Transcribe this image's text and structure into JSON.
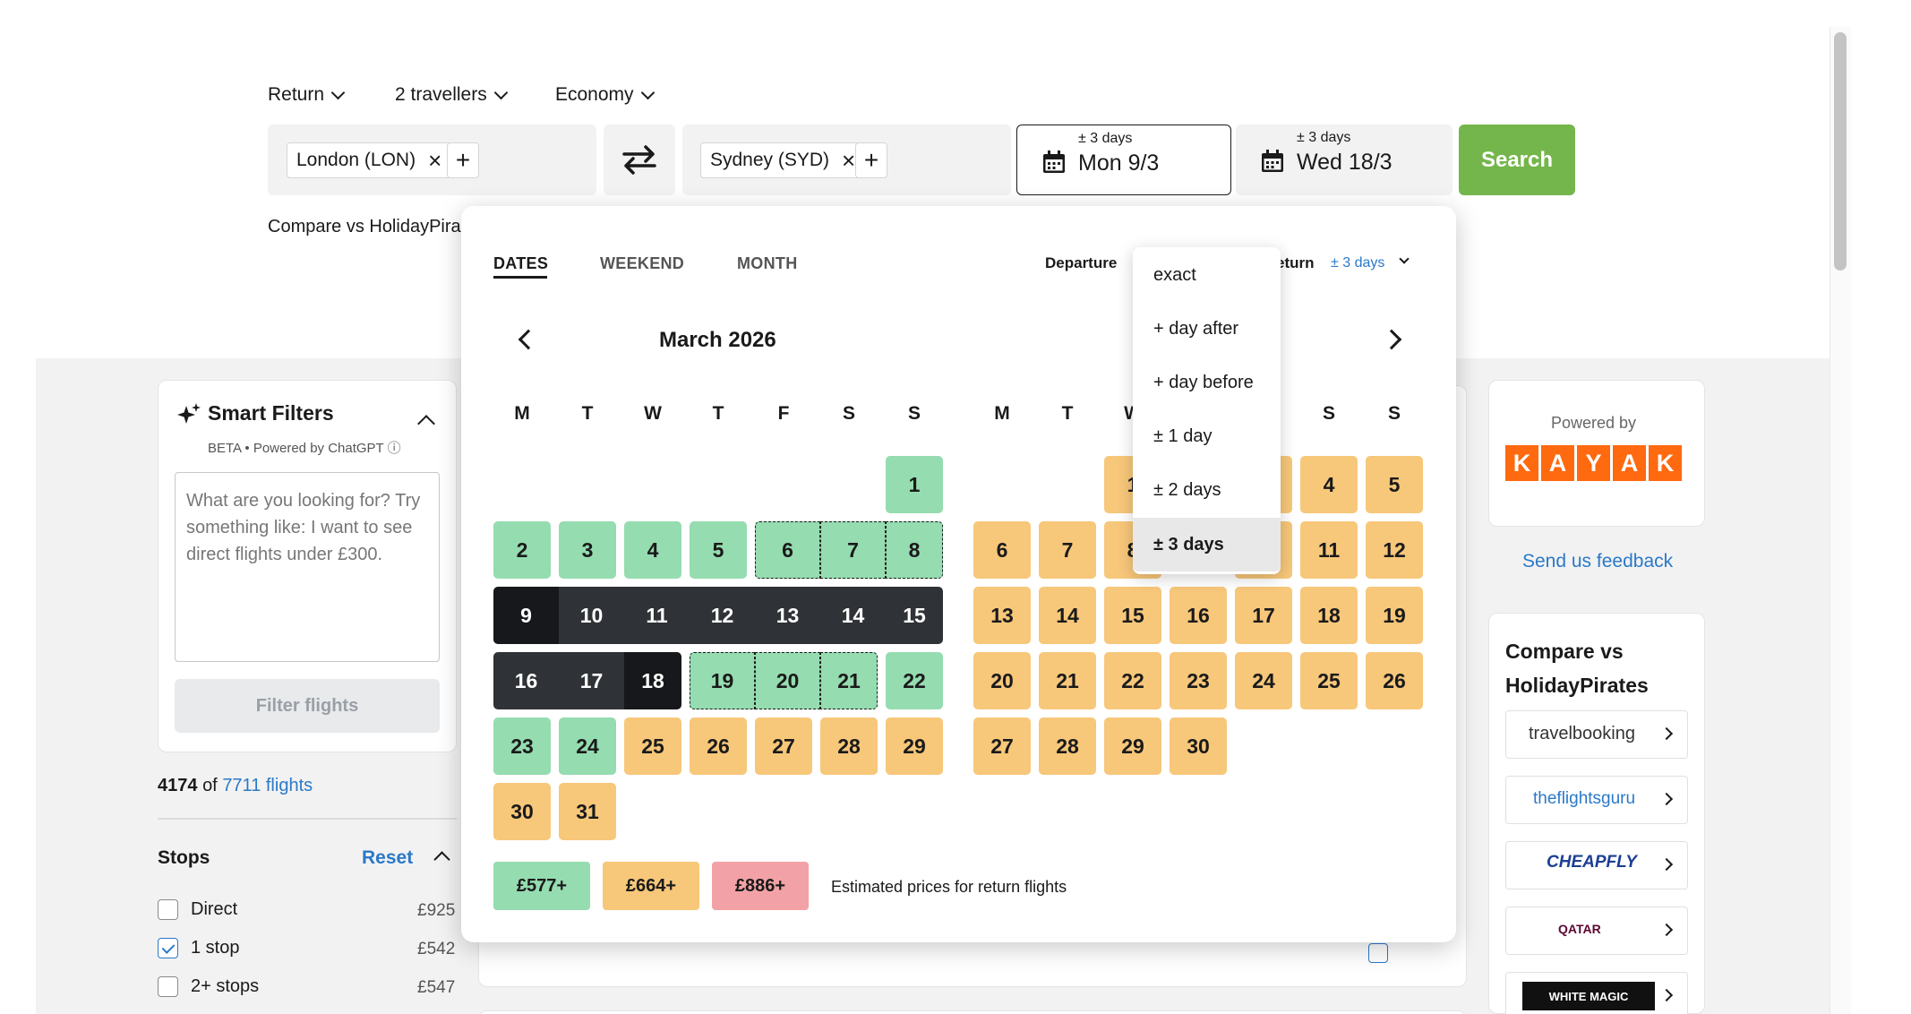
{
  "search": {
    "trip_type": "Return",
    "travellers": "2 travellers",
    "cabin": "Economy",
    "origin": "London (LON)",
    "destination": "Sydney (SYD)",
    "depart_flex": "± 3 days",
    "depart_date": "Mon 9/3",
    "return_flex": "± 3 days",
    "return_date": "Wed 18/3",
    "search_label": "Search",
    "compare_text": "Compare vs HolidayPira"
  },
  "datepicker": {
    "tabs": [
      "DATES",
      "WEEKEND",
      "MONTH"
    ],
    "departure_label": "Departure",
    "return_label": "eturn",
    "return_flex": "± 3 days",
    "month_title": "March 2026",
    "weekdays": [
      "M",
      "T",
      "W",
      "T",
      "F",
      "S",
      "S"
    ],
    "weekdays_right": [
      "M",
      "T",
      "W",
      "S",
      "S"
    ],
    "legend": [
      {
        "label": "£577+",
        "color": "#95dcb0"
      },
      {
        "label": "£664+",
        "color": "#f7c77a"
      },
      {
        "label": "£886+",
        "color": "#f2a2a6"
      }
    ],
    "legend_text": "Estimated prices for return flights"
  },
  "flex_menu": {
    "options": [
      "exact",
      "+ day after",
      "+ day before",
      "± 1 day",
      "± 2 days",
      "± 3 days"
    ],
    "selected": "± 3 days"
  },
  "smart_filters": {
    "title": "Smart Filters",
    "subtitle": "BETA • Powered by ChatGPT ⓘ",
    "placeholder": "What are you looking for? Try something like: I want to see direct flights under £300.",
    "button": "Filter flights"
  },
  "results": {
    "shown": "4174",
    "of_text": "of",
    "total": "7711 flights"
  },
  "stops": {
    "title": "Stops",
    "reset": "Reset",
    "options": [
      {
        "label": "Direct",
        "price": "£925",
        "checked": false
      },
      {
        "label": "1 stop",
        "price": "£542",
        "checked": true
      },
      {
        "label": "2+ stops",
        "price": "£547",
        "checked": false
      }
    ]
  },
  "sidebar_right": {
    "powered_by": "Powered by",
    "brand": [
      "K",
      "A",
      "Y",
      "A",
      "K"
    ],
    "feedback": "Send us feedback",
    "compare_title": "Compare vs HolidayPirates",
    "partners": [
      "travelbooking",
      "theflightsguru",
      "CHEAPFLY",
      "QATAR",
      "WHITE MAGIC"
    ]
  }
}
